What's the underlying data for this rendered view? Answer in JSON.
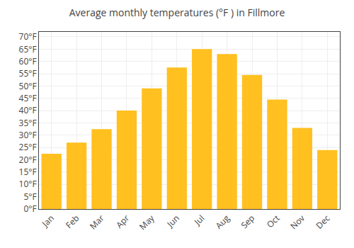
{
  "chart_data": {
    "type": "bar",
    "title": "Average monthly temperatures (°F ) in Fillmore",
    "categories": [
      "Jan",
      "Feb",
      "Mar",
      "Apr",
      "May",
      "Jun",
      "Jul",
      "Aug",
      "Sep",
      "Oct",
      "Nov",
      "Dec"
    ],
    "values": [
      22.5,
      27.0,
      32.5,
      40.0,
      49.0,
      57.5,
      65.0,
      63.0,
      54.5,
      44.5,
      33.0,
      24.0
    ],
    "color": "#FFC020",
    "ylim": [
      0,
      72
    ],
    "yticks": [
      {
        "value": 0,
        "label": "0°F"
      },
      {
        "value": 5,
        "label": "5°F"
      },
      {
        "value": 10,
        "label": "10°F"
      },
      {
        "value": 15,
        "label": "15°F"
      },
      {
        "value": 20,
        "label": "20°F"
      },
      {
        "value": 25,
        "label": "25°F"
      },
      {
        "value": 30,
        "label": "30°F"
      },
      {
        "value": 35,
        "label": "35°F"
      },
      {
        "value": 40,
        "label": "40°F"
      },
      {
        "value": 45,
        "label": "45°F"
      },
      {
        "value": 50,
        "label": "50°F"
      },
      {
        "value": 55,
        "label": "55°F"
      },
      {
        "value": 60,
        "label": "60°F"
      },
      {
        "value": 65,
        "label": "65°F"
      },
      {
        "value": 70,
        "label": "70°F"
      }
    ],
    "grid": true
  }
}
